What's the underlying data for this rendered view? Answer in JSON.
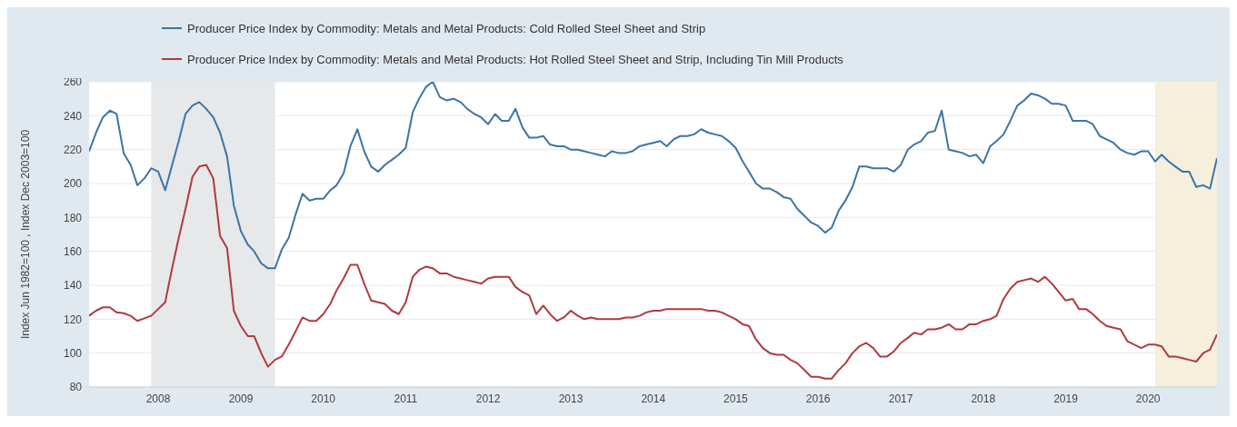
{
  "chart_data": {
    "type": "line",
    "ylabel": "Index Jun 1982=100 , Index Dec 2003=100",
    "x": [
      "2007-03",
      "2007-04",
      "2007-05",
      "2007-06",
      "2007-07",
      "2007-08",
      "2007-09",
      "2007-10",
      "2007-11",
      "2007-12",
      "2008-01",
      "2008-02",
      "2008-03",
      "2008-04",
      "2008-05",
      "2008-06",
      "2008-07",
      "2008-08",
      "2008-09",
      "2008-10",
      "2008-11",
      "2008-12",
      "2009-01",
      "2009-02",
      "2009-03",
      "2009-04",
      "2009-05",
      "2009-06",
      "2009-07",
      "2009-08",
      "2009-09",
      "2009-10",
      "2009-11",
      "2009-12",
      "2010-01",
      "2010-02",
      "2010-03",
      "2010-04",
      "2010-05",
      "2010-06",
      "2010-07",
      "2010-08",
      "2010-09",
      "2010-10",
      "2010-11",
      "2010-12",
      "2011-01",
      "2011-02",
      "2011-03",
      "2011-04",
      "2011-05",
      "2011-06",
      "2011-07",
      "2011-08",
      "2011-09",
      "2011-10",
      "2011-11",
      "2011-12",
      "2012-01",
      "2012-02",
      "2012-03",
      "2012-04",
      "2012-05",
      "2012-06",
      "2012-07",
      "2012-08",
      "2012-09",
      "2012-10",
      "2012-11",
      "2012-12",
      "2013-01",
      "2013-02",
      "2013-03",
      "2013-04",
      "2013-05",
      "2013-06",
      "2013-07",
      "2013-08",
      "2013-09",
      "2013-10",
      "2013-11",
      "2013-12",
      "2014-01",
      "2014-02",
      "2014-03",
      "2014-04",
      "2014-05",
      "2014-06",
      "2014-07",
      "2014-08",
      "2014-09",
      "2014-10",
      "2014-11",
      "2014-12",
      "2015-01",
      "2015-02",
      "2015-03",
      "2015-04",
      "2015-05",
      "2015-06",
      "2015-07",
      "2015-08",
      "2015-09",
      "2015-10",
      "2015-11",
      "2015-12",
      "2016-01",
      "2016-02",
      "2016-03",
      "2016-04",
      "2016-05",
      "2016-06",
      "2016-07",
      "2016-08",
      "2016-09",
      "2016-10",
      "2016-11",
      "2016-12",
      "2017-01",
      "2017-02",
      "2017-03",
      "2017-04",
      "2017-05",
      "2017-06",
      "2017-07",
      "2017-08",
      "2017-09",
      "2017-10",
      "2017-11",
      "2017-12",
      "2018-01",
      "2018-02",
      "2018-03",
      "2018-04",
      "2018-05",
      "2018-06",
      "2018-07",
      "2018-08",
      "2018-09",
      "2018-10",
      "2018-11",
      "2018-12",
      "2019-01",
      "2019-02",
      "2019-03",
      "2019-04",
      "2019-05",
      "2019-06",
      "2019-07",
      "2019-08",
      "2019-09",
      "2019-10",
      "2019-11",
      "2019-12",
      "2020-01",
      "2020-02",
      "2020-03",
      "2020-04",
      "2020-05",
      "2020-06",
      "2020-07",
      "2020-08",
      "2020-09",
      "2020-10",
      "2020-11"
    ],
    "series": [
      {
        "name": "Producer Price Index by Commodity: Metals and Metal Products: Cold Rolled Steel Sheet and Strip",
        "color": "#3a75a8",
        "values": [
          219,
          230,
          239,
          243,
          241,
          218,
          211,
          199,
          203,
          209,
          207,
          196,
          210,
          225,
          241,
          246,
          248,
          244,
          239,
          230,
          216,
          187,
          172,
          164,
          160,
          153,
          150,
          150,
          161,
          168,
          182,
          194,
          190,
          191,
          191,
          196,
          199,
          206,
          222,
          232,
          219,
          210,
          207,
          211,
          214,
          217,
          221,
          242,
          250,
          257,
          260,
          251,
          249,
          250,
          248,
          244,
          241,
          239,
          235,
          241,
          237,
          237,
          244,
          233,
          227,
          227,
          228,
          223,
          222,
          222,
          220,
          220,
          219,
          218,
          217,
          216,
          219,
          218,
          218,
          219,
          222,
          223,
          224,
          225,
          222,
          226,
          228,
          228,
          229,
          232,
          230,
          229,
          228,
          225,
          221,
          213,
          207,
          200,
          197,
          197,
          195,
          192,
          191,
          185,
          181,
          177,
          175,
          171,
          174,
          184,
          190,
          198,
          210,
          210,
          209,
          209,
          209,
          207,
          211,
          220,
          223,
          225,
          230,
          231,
          243,
          220,
          219,
          218,
          216,
          217,
          212,
          222,
          225,
          229,
          237,
          246,
          249,
          253,
          252,
          250,
          247,
          247,
          246,
          237,
          237,
          237,
          235,
          228,
          226,
          224,
          220,
          218,
          217,
          219,
          219,
          213,
          217,
          213,
          210,
          207,
          207,
          198,
          199,
          197,
          215
        ]
      },
      {
        "name": "Producer Price Index by Commodity: Metals and Metal Products: Hot Rolled Steel Sheet and Strip, Including Tin Mill Products",
        "color": "#b03a3e",
        "values": [
          122,
          125,
          127,
          127,
          124,
          123.5,
          122,
          119,
          120.5,
          122,
          126,
          130,
          149,
          168,
          185,
          204,
          210,
          211,
          203,
          169,
          162,
          125,
          116,
          110,
          110,
          100,
          92,
          96,
          98,
          105,
          113,
          121,
          119,
          119,
          123,
          129,
          137,
          144,
          152,
          152,
          141,
          131,
          130,
          129,
          125,
          123,
          130,
          145,
          149,
          151,
          150,
          147,
          147,
          145,
          144,
          143,
          142,
          141,
          144,
          145,
          145,
          145,
          139,
          136,
          134,
          123,
          128,
          123,
          119,
          121,
          125,
          122,
          120,
          121,
          120,
          120,
          120,
          120,
          121,
          121,
          122,
          124,
          125,
          125,
          126,
          126,
          126,
          126,
          126,
          126,
          125,
          125,
          124,
          122,
          120,
          117,
          116,
          108,
          103,
          100,
          99,
          99,
          96,
          94,
          90,
          86,
          86,
          85,
          85,
          90,
          94,
          100,
          104,
          106,
          103,
          98,
          98,
          101,
          106,
          109,
          112,
          111,
          114,
          114,
          115,
          117,
          114,
          114,
          117,
          117,
          119,
          120,
          122,
          132,
          138,
          142,
          143,
          144,
          142,
          145,
          141,
          136,
          131,
          132,
          126,
          126,
          123,
          119,
          116,
          115,
          114,
          107,
          105,
          103,
          105,
          105,
          104,
          98,
          98,
          97,
          96,
          95,
          100,
          102,
          111
        ]
      }
    ],
    "xlim": [
      "2007-03",
      "2020-11"
    ],
    "xticks": [
      "2008",
      "2009",
      "2010",
      "2011",
      "2012",
      "2013",
      "2014",
      "2015",
      "2016",
      "2017",
      "2018",
      "2019",
      "2020"
    ],
    "ylim": [
      80,
      260
    ],
    "yticks": [
      80,
      100,
      120,
      140,
      160,
      180,
      200,
      220,
      240,
      260
    ],
    "bands": [
      {
        "axis": "x",
        "from": "2007-12",
        "to": "2009-06",
        "color": "#e6e8ea"
      },
      {
        "axis": "x",
        "from": "2020-02",
        "to": "2020-11",
        "color": "#f5efdc"
      }
    ],
    "grid": "y",
    "legend": "top",
    "line_style": "solid",
    "marker": "none"
  }
}
